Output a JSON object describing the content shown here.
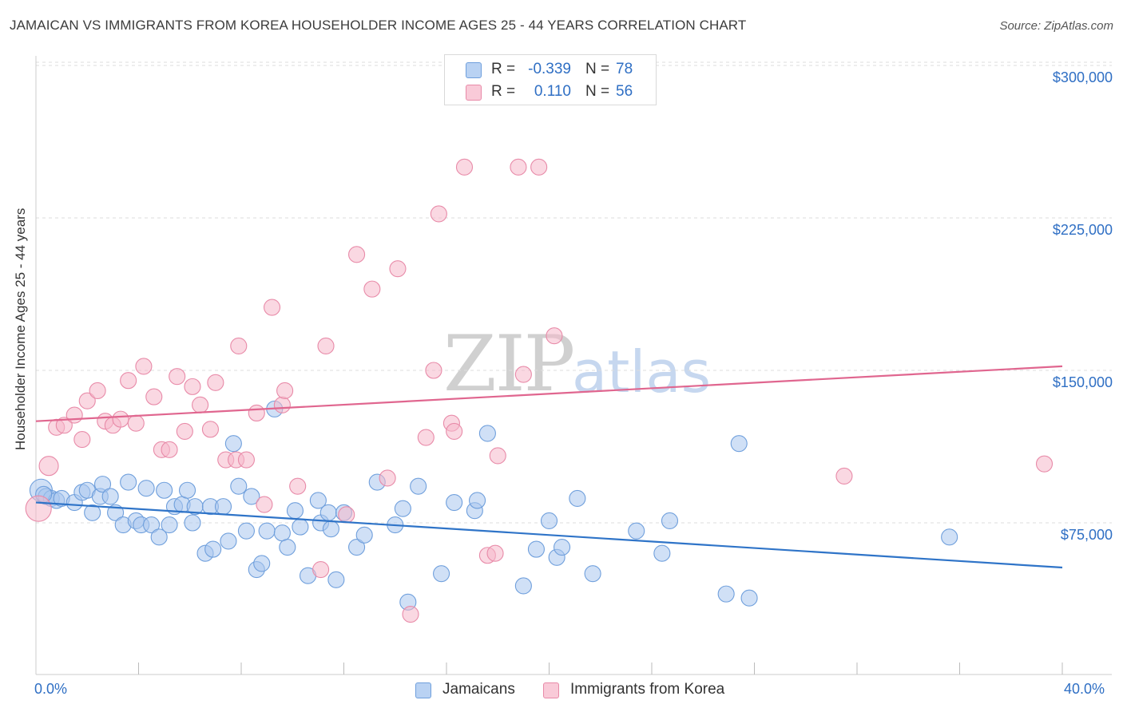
{
  "header": {
    "title": "JAMAICAN VS IMMIGRANTS FROM KOREA HOUSEHOLDER INCOME AGES 25 - 44 YEARS CORRELATION CHART",
    "source": "Source: ZipAtlas.com"
  },
  "watermark": {
    "zip": "ZIP",
    "atlas": "atlas"
  },
  "legend_top": {
    "rows": [
      {
        "r_label": "R =",
        "r_value": "-0.339",
        "n_label": "N =",
        "n_value": "78"
      },
      {
        "r_label": "R =",
        "r_value": "0.110",
        "n_label": "N =",
        "n_value": "56"
      }
    ]
  },
  "legend_bottom": {
    "items": [
      "Jamaicans",
      "Immigrants from Korea"
    ]
  },
  "axes": {
    "ylabel": "Householder Income Ages 25 - 44 years",
    "x_left": "0.0%",
    "x_right": "40.0%",
    "y_ticks": [
      "$300,000",
      "$225,000",
      "$150,000",
      "$75,000"
    ]
  },
  "colors": {
    "blue_fill": "#a9c6ef",
    "blue_stroke": "#6f9fdc",
    "blue_line": "#2f74c8",
    "pink_fill": "#f5b8cb",
    "pink_stroke": "#e88aa8",
    "pink_line": "#e0668f",
    "grid": "#dcdcdc",
    "axis_text": "#2f6fc4"
  },
  "chart_data": {
    "type": "scatter",
    "xlim": [
      0,
      40
    ],
    "ylim": [
      0,
      310000
    ],
    "x_unit": "%",
    "grid": "horizontal dashed",
    "series": [
      {
        "name": "Jamaicans",
        "color": "#a9c6ef",
        "trend": {
          "x": [
            0,
            40
          ],
          "y": [
            85000,
            53000
          ]
        },
        "points": [
          [
            0.2,
            91000,
            14
          ],
          [
            0.4,
            88000,
            10
          ],
          [
            0.6,
            87000,
            10
          ],
          [
            0.8,
            86000,
            10
          ],
          [
            1.0,
            87000,
            10
          ],
          [
            1.5,
            85000,
            10
          ],
          [
            1.8,
            90000,
            10
          ],
          [
            2.2,
            80000,
            10
          ],
          [
            2.0,
            91000,
            10
          ],
          [
            2.5,
            88000,
            10
          ],
          [
            2.6,
            94000,
            10
          ],
          [
            2.9,
            88000,
            10
          ],
          [
            3.1,
            80000,
            10
          ],
          [
            3.4,
            74000,
            10
          ],
          [
            3.6,
            95000,
            10
          ],
          [
            3.9,
            76000,
            10
          ],
          [
            4.1,
            74000,
            10
          ],
          [
            4.3,
            92000,
            10
          ],
          [
            4.5,
            74000,
            10
          ],
          [
            4.8,
            68000,
            10
          ],
          [
            5.0,
            91000,
            10
          ],
          [
            5.2,
            74000,
            10
          ],
          [
            5.4,
            83000,
            10
          ],
          [
            5.7,
            84000,
            10
          ],
          [
            5.9,
            91000,
            10
          ],
          [
            6.1,
            75000,
            10
          ],
          [
            6.2,
            83000,
            10
          ],
          [
            6.6,
            60000,
            10
          ],
          [
            6.8,
            83000,
            10
          ],
          [
            6.9,
            62000,
            10
          ],
          [
            7.3,
            83000,
            10
          ],
          [
            7.5,
            66000,
            10
          ],
          [
            7.7,
            114000,
            10
          ],
          [
            7.9,
            93000,
            10
          ],
          [
            8.2,
            71000,
            10
          ],
          [
            8.4,
            88000,
            10
          ],
          [
            8.6,
            52000,
            10
          ],
          [
            8.8,
            55000,
            10
          ],
          [
            9.0,
            71000,
            10
          ],
          [
            9.3,
            131000,
            10
          ],
          [
            9.6,
            70000,
            10
          ],
          [
            9.8,
            63000,
            10
          ],
          [
            10.1,
            81000,
            10
          ],
          [
            10.3,
            73000,
            10
          ],
          [
            10.6,
            49000,
            10
          ],
          [
            11.0,
            86000,
            10
          ],
          [
            11.1,
            75000,
            10
          ],
          [
            11.4,
            80000,
            10
          ],
          [
            11.5,
            72000,
            10
          ],
          [
            11.7,
            47000,
            10
          ],
          [
            12.0,
            80000,
            10
          ],
          [
            12.5,
            63000,
            10
          ],
          [
            12.8,
            69000,
            10
          ],
          [
            13.3,
            95000,
            10
          ],
          [
            14.0,
            74000,
            10
          ],
          [
            14.3,
            82000,
            10
          ],
          [
            14.5,
            36000,
            10
          ],
          [
            14.9,
            93000,
            10
          ],
          [
            15.8,
            50000,
            10
          ],
          [
            16.3,
            85000,
            10
          ],
          [
            17.6,
            119000,
            10
          ],
          [
            17.1,
            81000,
            10
          ],
          [
            17.2,
            86000,
            10
          ],
          [
            19.0,
            44000,
            10
          ],
          [
            19.5,
            62000,
            10
          ],
          [
            20.0,
            76000,
            10
          ],
          [
            20.3,
            58000,
            10
          ],
          [
            20.5,
            63000,
            10
          ],
          [
            21.1,
            87000,
            10
          ],
          [
            21.7,
            50000,
            10
          ],
          [
            23.4,
            71000,
            10
          ],
          [
            24.4,
            60000,
            10
          ],
          [
            24.7,
            76000,
            10
          ],
          [
            26.9,
            40000,
            10
          ],
          [
            27.4,
            114000,
            10
          ],
          [
            27.8,
            38000,
            10
          ],
          [
            35.6,
            68000,
            10
          ],
          [
            0.3,
            89000,
            10
          ]
        ]
      },
      {
        "name": "Immigrants from Korea",
        "color": "#f5b8cb",
        "trend": {
          "x": [
            0,
            40
          ],
          "y": [
            125000,
            152000
          ]
        },
        "points": [
          [
            0.1,
            82000,
            16
          ],
          [
            0.5,
            103000,
            12
          ],
          [
            0.8,
            122000,
            10
          ],
          [
            1.1,
            123000,
            10
          ],
          [
            1.5,
            128000,
            10
          ],
          [
            1.8,
            116000,
            10
          ],
          [
            2.0,
            135000,
            10
          ],
          [
            2.4,
            140000,
            10
          ],
          [
            2.7,
            125000,
            10
          ],
          [
            3.0,
            123000,
            10
          ],
          [
            3.3,
            126000,
            10
          ],
          [
            3.6,
            145000,
            10
          ],
          [
            3.9,
            124000,
            10
          ],
          [
            4.2,
            152000,
            10
          ],
          [
            4.6,
            137000,
            10
          ],
          [
            4.9,
            111000,
            10
          ],
          [
            5.2,
            111000,
            10
          ],
          [
            5.5,
            147000,
            10
          ],
          [
            5.8,
            120000,
            10
          ],
          [
            6.1,
            142000,
            10
          ],
          [
            6.4,
            133000,
            10
          ],
          [
            6.8,
            121000,
            10
          ],
          [
            7.0,
            144000,
            10
          ],
          [
            7.4,
            106000,
            10
          ],
          [
            7.8,
            106000,
            10
          ],
          [
            7.9,
            162000,
            10
          ],
          [
            8.2,
            106000,
            10
          ],
          [
            8.6,
            129000,
            10
          ],
          [
            8.9,
            84000,
            10
          ],
          [
            9.2,
            181000,
            10
          ],
          [
            9.6,
            133000,
            10
          ],
          [
            9.7,
            140000,
            10
          ],
          [
            10.2,
            93000,
            10
          ],
          [
            11.1,
            52000,
            10
          ],
          [
            11.3,
            162000,
            10
          ],
          [
            12.1,
            79000,
            10
          ],
          [
            12.5,
            207000,
            10
          ],
          [
            13.1,
            190000,
            10
          ],
          [
            13.7,
            97000,
            10
          ],
          [
            14.1,
            200000,
            10
          ],
          [
            14.6,
            30000,
            10
          ],
          [
            15.2,
            117000,
            10
          ],
          [
            15.5,
            150000,
            10
          ],
          [
            15.7,
            227000,
            10
          ],
          [
            16.2,
            124000,
            10
          ],
          [
            16.3,
            120000,
            10
          ],
          [
            16.7,
            250000,
            10
          ],
          [
            17.6,
            59000,
            10
          ],
          [
            17.9,
            60000,
            10
          ],
          [
            18.0,
            108000,
            10
          ],
          [
            18.8,
            250000,
            10
          ],
          [
            19.0,
            148000,
            10
          ],
          [
            19.6,
            250000,
            10
          ],
          [
            20.2,
            167000,
            10
          ],
          [
            31.5,
            98000,
            10
          ],
          [
            39.3,
            104000,
            10
          ]
        ]
      }
    ]
  }
}
